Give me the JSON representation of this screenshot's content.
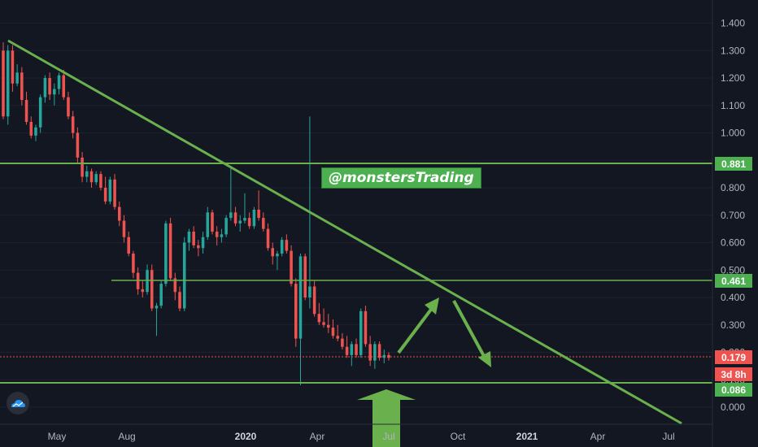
{
  "watermark": "@monstersTrading",
  "colors": {
    "background": "#131722",
    "up": "#26a69a",
    "down": "#ef5350",
    "trend": "#6ab04c",
    "level": "#6ab04c",
    "price_line": "#ef5350",
    "axis_text": "#b2b5be"
  },
  "chart_data": {
    "type": "candlestick",
    "y_ticks": [
      "1.400",
      "1.300",
      "1.200",
      "1.100",
      "1.000",
      "0.900",
      "0.800",
      "0.700",
      "0.600",
      "0.500",
      "0.400",
      "0.300",
      "0.200",
      "0.100",
      "0.000"
    ],
    "x_ticks": [
      {
        "label": "May",
        "bold": false
      },
      {
        "label": "Aug",
        "bold": false
      },
      {
        "label": "2020",
        "bold": true
      },
      {
        "label": "Apr",
        "bold": false
      },
      {
        "label": "Jul",
        "bold": false
      },
      {
        "label": "Oct",
        "bold": false
      },
      {
        "label": "2021",
        "bold": true
      },
      {
        "label": "Apr",
        "bold": false
      },
      {
        "label": "Jul",
        "bold": false
      }
    ],
    "levels": [
      {
        "label": "0.881",
        "value": 0.881
      },
      {
        "label": "0.461",
        "value": 0.461
      },
      {
        "label": "0.086",
        "value": 0.086
      }
    ],
    "current_price": {
      "label": "0.179",
      "value": 0.179,
      "countdown": "3d 8h"
    },
    "candles": [
      [
        1.3,
        1.33,
        1.05,
        1.06
      ],
      [
        1.06,
        1.32,
        1.03,
        1.3
      ],
      [
        1.3,
        1.32,
        1.15,
        1.18
      ],
      [
        1.18,
        1.25,
        1.17,
        1.22
      ],
      [
        1.22,
        1.24,
        1.1,
        1.12
      ],
      [
        1.12,
        1.15,
        1.03,
        1.04
      ],
      [
        1.04,
        1.06,
        0.98,
        0.99
      ],
      [
        0.99,
        1.03,
        0.97,
        1.02
      ],
      [
        1.02,
        1.14,
        1.0,
        1.13
      ],
      [
        1.13,
        1.21,
        1.11,
        1.2
      ],
      [
        1.2,
        1.22,
        1.12,
        1.14
      ],
      [
        1.14,
        1.18,
        1.1,
        1.16
      ],
      [
        1.16,
        1.22,
        1.14,
        1.21
      ],
      [
        1.21,
        1.23,
        1.12,
        1.13
      ],
      [
        1.13,
        1.15,
        1.05,
        1.06
      ],
      [
        1.06,
        1.08,
        0.98,
        1.0
      ],
      [
        1.0,
        1.02,
        0.89,
        0.91
      ],
      [
        0.91,
        0.93,
        0.82,
        0.84
      ],
      [
        0.84,
        0.88,
        0.82,
        0.86
      ],
      [
        0.86,
        0.87,
        0.8,
        0.82
      ],
      [
        0.82,
        0.86,
        0.81,
        0.85
      ],
      [
        0.85,
        0.86,
        0.79,
        0.8
      ],
      [
        0.8,
        0.84,
        0.74,
        0.75
      ],
      [
        0.75,
        0.84,
        0.74,
        0.83
      ],
      [
        0.83,
        0.85,
        0.72,
        0.73
      ],
      [
        0.73,
        0.75,
        0.66,
        0.68
      ],
      [
        0.68,
        0.7,
        0.6,
        0.62
      ],
      [
        0.62,
        0.64,
        0.55,
        0.56
      ],
      [
        0.56,
        0.57,
        0.47,
        0.49
      ],
      [
        0.49,
        0.51,
        0.41,
        0.43
      ],
      [
        0.43,
        0.46,
        0.4,
        0.42
      ],
      [
        0.42,
        0.52,
        0.41,
        0.5
      ],
      [
        0.5,
        0.52,
        0.35,
        0.36
      ],
      [
        0.36,
        0.38,
        0.26,
        0.37
      ],
      [
        0.37,
        0.46,
        0.36,
        0.45
      ],
      [
        0.45,
        0.68,
        0.44,
        0.67
      ],
      [
        0.67,
        0.69,
        0.46,
        0.47
      ],
      [
        0.47,
        0.49,
        0.39,
        0.42
      ],
      [
        0.42,
        0.44,
        0.35,
        0.36
      ],
      [
        0.36,
        0.62,
        0.35,
        0.6
      ],
      [
        0.6,
        0.65,
        0.57,
        0.64
      ],
      [
        0.64,
        0.66,
        0.58,
        0.59
      ],
      [
        0.59,
        0.61,
        0.55,
        0.58
      ],
      [
        0.58,
        0.64,
        0.56,
        0.62
      ],
      [
        0.62,
        0.73,
        0.61,
        0.71
      ],
      [
        0.71,
        0.72,
        0.63,
        0.64
      ],
      [
        0.64,
        0.66,
        0.59,
        0.62
      ],
      [
        0.62,
        0.65,
        0.6,
        0.63
      ],
      [
        0.63,
        0.7,
        0.62,
        0.69
      ],
      [
        0.69,
        0.88,
        0.68,
        0.71
      ],
      [
        0.71,
        0.73,
        0.66,
        0.67
      ],
      [
        0.67,
        0.7,
        0.64,
        0.68
      ],
      [
        0.68,
        0.78,
        0.67,
        0.69
      ],
      [
        0.69,
        0.71,
        0.65,
        0.66
      ],
      [
        0.66,
        0.73,
        0.65,
        0.72
      ],
      [
        0.72,
        0.79,
        0.68,
        0.69
      ],
      [
        0.69,
        0.71,
        0.64,
        0.65
      ],
      [
        0.65,
        0.67,
        0.57,
        0.58
      ],
      [
        0.58,
        0.6,
        0.52,
        0.55
      ],
      [
        0.55,
        0.57,
        0.5,
        0.56
      ],
      [
        0.56,
        0.62,
        0.55,
        0.61
      ],
      [
        0.61,
        0.63,
        0.56,
        0.57
      ],
      [
        0.57,
        0.59,
        0.44,
        0.45
      ],
      [
        0.45,
        0.47,
        0.22,
        0.25
      ],
      [
        0.25,
        0.56,
        0.08,
        0.55
      ],
      [
        0.55,
        0.56,
        0.39,
        0.4
      ],
      [
        0.4,
        1.06,
        0.36,
        0.44
      ],
      [
        0.44,
        0.46,
        0.33,
        0.34
      ],
      [
        0.34,
        0.38,
        0.3,
        0.31
      ],
      [
        0.31,
        0.36,
        0.29,
        0.3
      ],
      [
        0.3,
        0.34,
        0.27,
        0.29
      ],
      [
        0.29,
        0.32,
        0.25,
        0.26
      ],
      [
        0.26,
        0.3,
        0.24,
        0.25
      ],
      [
        0.25,
        0.27,
        0.21,
        0.22
      ],
      [
        0.22,
        0.26,
        0.18,
        0.19
      ],
      [
        0.19,
        0.24,
        0.15,
        0.23
      ],
      [
        0.23,
        0.25,
        0.18,
        0.19
      ],
      [
        0.19,
        0.36,
        0.18,
        0.35
      ],
      [
        0.35,
        0.37,
        0.22,
        0.23
      ],
      [
        0.23,
        0.26,
        0.15,
        0.17
      ],
      [
        0.17,
        0.24,
        0.14,
        0.23
      ],
      [
        0.23,
        0.24,
        0.17,
        0.18
      ],
      [
        0.18,
        0.21,
        0.16,
        0.19
      ],
      [
        0.19,
        0.2,
        0.17,
        0.18
      ]
    ]
  }
}
